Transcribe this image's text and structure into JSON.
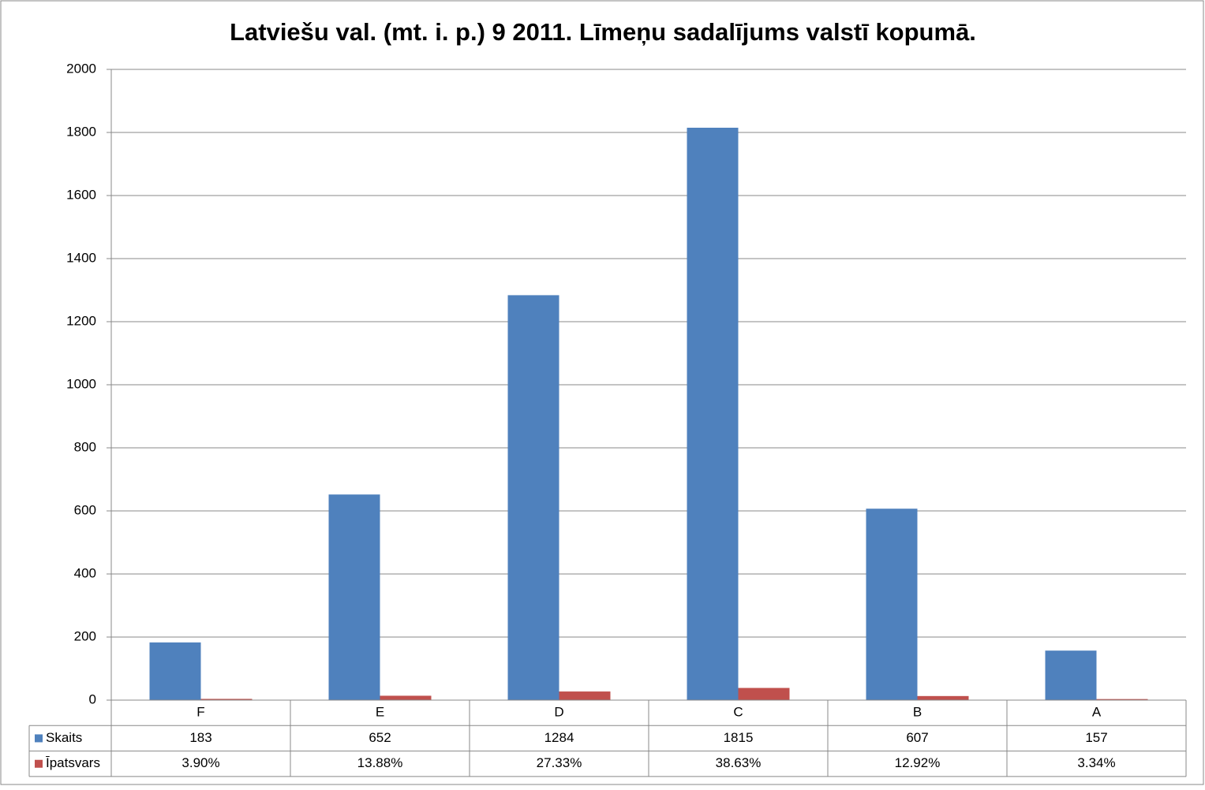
{
  "chart_data": {
    "type": "bar",
    "title": "Latviešu val. (mt. i. p.) 9 2011. Līmeņu sadalījums valstī kopumā.",
    "categories": [
      "F",
      "E",
      "D",
      "C",
      "B",
      "A"
    ],
    "series": [
      {
        "name": "Skaits",
        "color": "#4f81bd",
        "values": [
          183,
          652,
          1284,
          1815,
          607,
          157
        ]
      },
      {
        "name": "Īpatsvars",
        "color": "#c0504d",
        "values": [
          3.9,
          13.88,
          27.33,
          38.63,
          12.92,
          3.34
        ],
        "value_labels": [
          "3.90%",
          "13.88%",
          "27.33%",
          "38.63%",
          "12.92%",
          "3.34%"
        ]
      }
    ],
    "ylim": [
      0,
      2000
    ],
    "yticks": [
      0,
      200,
      400,
      600,
      800,
      1000,
      1200,
      1400,
      1600,
      1800,
      2000
    ],
    "grid": true
  }
}
